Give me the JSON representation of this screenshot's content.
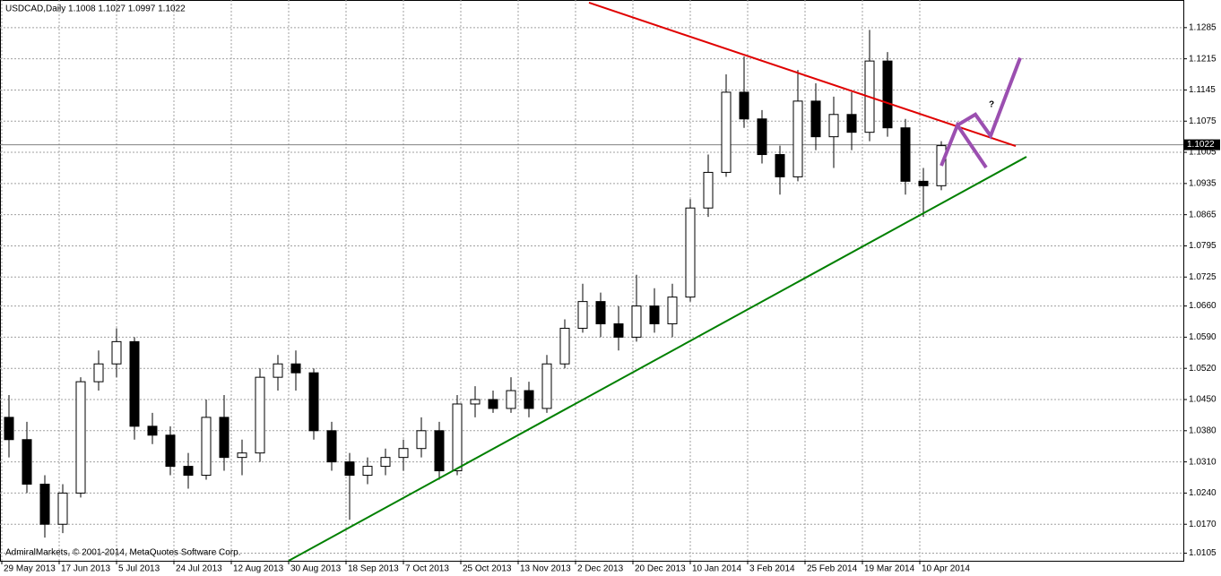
{
  "chart_data": {
    "type": "candlestick",
    "title": "USDCAD,Daily  1.1008 1.1027 1.0997 1.1022",
    "footer": "AdmiralMarkets, © 2001-2014, MetaQuotes Software Corp.",
    "x": [
      0,
      1,
      2,
      3,
      4,
      5,
      6,
      7,
      8,
      9,
      10,
      11,
      12,
      13,
      14,
      15,
      16,
      17,
      18,
      19,
      20,
      21,
      22,
      23,
      24,
      25,
      26,
      27,
      28,
      29,
      30,
      31,
      32,
      33,
      34,
      35,
      36,
      37,
      38,
      39,
      40,
      41,
      42,
      43,
      44,
      45,
      46,
      47,
      48,
      49,
      50,
      51,
      52
    ],
    "open": [
      1.041,
      1.036,
      1.026,
      1.017,
      1.024,
      1.049,
      1.053,
      1.058,
      1.039,
      1.037,
      1.03,
      1.028,
      1.041,
      1.032,
      1.033,
      1.05,
      1.053,
      1.051,
      1.038,
      1.031,
      1.028,
      1.03,
      1.032,
      1.034,
      1.038,
      1.029,
      1.044,
      1.045,
      1.043,
      1.047,
      1.043,
      1.053,
      1.061,
      1.067,
      1.062,
      1.059,
      1.066,
      1.062,
      1.068,
      1.088,
      1.096,
      1.114,
      1.108,
      1.1,
      1.095,
      1.112,
      1.104,
      1.109,
      1.105,
      1.121,
      1.106,
      1.094,
      1.093
    ],
    "high": [
      1.046,
      1.04,
      1.028,
      1.026,
      1.05,
      1.056,
      1.061,
      1.059,
      1.042,
      1.039,
      1.033,
      1.045,
      1.046,
      1.036,
      1.052,
      1.055,
      1.056,
      1.052,
      1.04,
      1.033,
      1.032,
      1.034,
      1.036,
      1.041,
      1.04,
      1.046,
      1.048,
      1.047,
      1.05,
      1.049,
      1.055,
      1.063,
      1.071,
      1.069,
      1.066,
      1.073,
      1.07,
      1.071,
      1.09,
      1.1,
      1.118,
      1.122,
      1.11,
      1.102,
      1.119,
      1.116,
      1.113,
      1.114,
      1.128,
      1.123,
      1.108,
      1.097,
      1.103
    ],
    "low": [
      1.032,
      1.024,
      1.014,
      1.015,
      1.023,
      1.047,
      1.05,
      1.036,
      1.035,
      1.028,
      1.025,
      1.027,
      1.029,
      1.028,
      1.031,
      1.047,
      1.047,
      1.036,
      1.029,
      1.018,
      1.026,
      1.028,
      1.029,
      1.032,
      1.027,
      1.028,
      1.041,
      1.042,
      1.042,
      1.041,
      1.042,
      1.052,
      1.06,
      1.059,
      1.056,
      1.058,
      1.06,
      1.059,
      1.067,
      1.086,
      1.095,
      1.106,
      1.098,
      1.091,
      1.094,
      1.101,
      1.097,
      1.101,
      1.103,
      1.104,
      1.091,
      1.086,
      1.092
    ],
    "close": [
      1.036,
      1.026,
      1.017,
      1.024,
      1.049,
      1.053,
      1.058,
      1.039,
      1.037,
      1.03,
      1.028,
      1.041,
      1.032,
      1.033,
      1.05,
      1.053,
      1.051,
      1.038,
      1.031,
      1.028,
      1.03,
      1.032,
      1.034,
      1.038,
      1.029,
      1.044,
      1.045,
      1.043,
      1.047,
      1.043,
      1.053,
      1.061,
      1.067,
      1.062,
      1.059,
      1.066,
      1.062,
      1.068,
      1.088,
      1.096,
      1.114,
      1.108,
      1.1,
      1.095,
      1.112,
      1.104,
      1.109,
      1.105,
      1.121,
      1.106,
      1.094,
      1.093,
      1.102
    ],
    "up_color": "#ffffff",
    "down_color": "#000000",
    "wick_color": "#000000",
    "xlim": [
      -0.5,
      65.5
    ],
    "xticks": [
      {
        "value": -0.4,
        "label": "29 May 2013"
      },
      {
        "value": 2.8,
        "label": "17 Jun 2013"
      },
      {
        "value": 6,
        "label": "5 Jul 2013"
      },
      {
        "value": 9.2,
        "label": "24 Jul 2013"
      },
      {
        "value": 12.4,
        "label": "12 Aug 2013"
      },
      {
        "value": 15.6,
        "label": "30 Aug 2013"
      },
      {
        "value": 18.8,
        "label": "18 Sep 2013"
      },
      {
        "value": 22,
        "label": "7 Oct 2013"
      },
      {
        "value": 25.2,
        "label": "25 Oct 2013"
      },
      {
        "value": 28.4,
        "label": "13 Nov 2013"
      },
      {
        "value": 31.6,
        "label": "2 Dec 2013"
      },
      {
        "value": 34.8,
        "label": "20 Dec 2013"
      },
      {
        "value": 38,
        "label": "10 Jan 2014"
      },
      {
        "value": 41.2,
        "label": "3 Feb 2014"
      },
      {
        "value": 44.4,
        "label": "25 Feb 2014"
      },
      {
        "value": 47.6,
        "label": "19 Mar 2014"
      },
      {
        "value": 50.8,
        "label": "10 Apr 2014"
      }
    ],
    "ylim": [
      1.0088,
      1.1347
    ],
    "yticks": [
      1.1285,
      1.1215,
      1.1145,
      1.1075,
      1.1005,
      1.0935,
      1.0865,
      1.0795,
      1.0725,
      {
        "value": 1.066,
        "label": "1.0660"
      },
      {
        "value": 1.059,
        "label": "1.0590"
      },
      {
        "value": 1.052,
        "label": "1.0520"
      },
      {
        "value": 1.045,
        "label": "1.0450"
      },
      {
        "value": 1.038,
        "label": "1.0380"
      },
      {
        "value": 1.031,
        "label": "1.0310"
      },
      {
        "value": 1.024,
        "label": "1.0240"
      },
      {
        "value": 1.017,
        "label": "1.0170"
      },
      1.0105
    ],
    "grid": true,
    "last_price": 1.1022,
    "lines": [
      {
        "color": "#e00000",
        "x": [
          32.35,
          56.15
        ],
        "y": [
          1.1341,
          1.1019
        ]
      },
      {
        "color": "#008000",
        "x": [
          15.6,
          56.75
        ],
        "y": [
          1.0088,
          1.0995
        ]
      },
      {
        "color": "#9b4fb0",
        "x": [
          52.0,
          52.9,
          54.5
        ],
        "y": [
          1.0975,
          1.1066,
          1.0971
        ]
      },
      {
        "color": "#9b4fb0",
        "x": [
          52.9,
          53.9,
          54.75,
          56.4
        ],
        "y": [
          1.1066,
          1.109,
          1.1042,
          1.1217
        ]
      }
    ],
    "annotations": [
      {
        "text": "?",
        "x": 54.8,
        "y": 1.1112
      }
    ]
  }
}
